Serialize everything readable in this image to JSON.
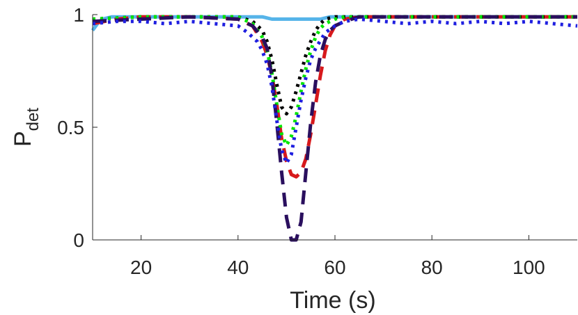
{
  "chart_data": {
    "type": "line",
    "xlabel": "Time (s)",
    "ylabel": {
      "main": "P",
      "subscript": "det"
    },
    "xlim": [
      10,
      110
    ],
    "ylim": [
      0,
      1
    ],
    "xticks": [
      20,
      40,
      60,
      80,
      100
    ],
    "yticks": [
      0,
      0.5,
      1
    ],
    "xtick_labels": [
      "20",
      "40",
      "60",
      "80",
      "100"
    ],
    "ytick_labels": [
      "0",
      "0.5",
      "1"
    ],
    "grid": false,
    "legend": "none",
    "series": [
      {
        "color": "#56b4e9",
        "style": "solid",
        "x": [
          10,
          11,
          12,
          14,
          16,
          20,
          30,
          40,
          43,
          45,
          47,
          50,
          53,
          55,
          57,
          59,
          61,
          70,
          80,
          90,
          100,
          110
        ],
        "y": [
          0.93,
          0.96,
          0.98,
          0.99,
          0.99,
          0.99,
          0.99,
          0.99,
          0.99,
          0.99,
          0.98,
          0.98,
          0.98,
          0.98,
          0.98,
          0.99,
          0.99,
          0.99,
          0.99,
          0.99,
          0.99,
          0.99
        ]
      },
      {
        "color": "#d7191c",
        "style": "dashed",
        "x": [
          10,
          15,
          20,
          30,
          40,
          43,
          45,
          46,
          47,
          48,
          49,
          50,
          51,
          52,
          53,
          54,
          55,
          56,
          57,
          58,
          59,
          60,
          62,
          65,
          70,
          80,
          90,
          100,
          110
        ],
        "y": [
          0.96,
          0.98,
          0.99,
          0.99,
          0.98,
          0.95,
          0.88,
          0.82,
          0.73,
          0.6,
          0.45,
          0.35,
          0.29,
          0.28,
          0.3,
          0.36,
          0.47,
          0.6,
          0.73,
          0.84,
          0.91,
          0.95,
          0.98,
          0.99,
          0.99,
          0.99,
          0.99,
          0.99,
          0.99
        ]
      },
      {
        "color": "#000000",
        "style": "dotted",
        "x": [
          10,
          20,
          30,
          40,
          43,
          45,
          46,
          47,
          48,
          49,
          50,
          51,
          52,
          53,
          54,
          55,
          56,
          57,
          58,
          60,
          62,
          70,
          80,
          90,
          100,
          110
        ],
        "y": [
          0.98,
          0.99,
          0.99,
          0.99,
          0.97,
          0.93,
          0.88,
          0.8,
          0.69,
          0.59,
          0.56,
          0.59,
          0.66,
          0.74,
          0.82,
          0.88,
          0.93,
          0.96,
          0.98,
          0.99,
          0.99,
          0.99,
          0.99,
          0.99,
          0.99,
          0.99
        ]
      },
      {
        "color": "#00e600",
        "style": "dotted",
        "x": [
          10,
          20,
          30,
          40,
          43,
          45,
          46,
          47,
          48,
          49,
          50,
          51,
          52,
          53,
          54,
          55,
          56,
          57,
          58,
          60,
          62,
          70,
          80,
          90,
          100,
          110
        ],
        "y": [
          0.98,
          0.99,
          0.99,
          0.99,
          0.96,
          0.9,
          0.84,
          0.74,
          0.6,
          0.47,
          0.42,
          0.46,
          0.55,
          0.66,
          0.76,
          0.84,
          0.9,
          0.94,
          0.96,
          0.98,
          0.99,
          0.99,
          0.99,
          0.99,
          0.99,
          0.99
        ]
      },
      {
        "color": "#2a0f5e",
        "style": "dashed",
        "x": [
          10,
          20,
          30,
          40,
          43,
          45,
          46,
          47,
          48,
          49,
          50,
          51,
          52,
          53,
          54,
          55,
          56,
          57,
          58,
          59,
          60,
          62,
          65,
          70,
          80,
          90,
          100,
          110
        ],
        "y": [
          0.97,
          0.98,
          0.99,
          0.98,
          0.95,
          0.9,
          0.85,
          0.72,
          0.52,
          0.3,
          0.1,
          0.0,
          0.0,
          0.08,
          0.3,
          0.52,
          0.7,
          0.82,
          0.89,
          0.93,
          0.95,
          0.97,
          0.99,
          0.99,
          0.99,
          0.99,
          0.99,
          0.99
        ]
      },
      {
        "color": "#1f1fe0",
        "style": "dotted",
        "x": [
          10,
          15,
          20,
          25,
          30,
          35,
          40,
          42,
          44,
          45,
          46,
          47,
          48,
          49,
          50,
          51,
          52,
          53,
          54,
          55,
          56,
          58,
          60,
          62,
          65,
          70,
          75,
          80,
          85,
          90,
          95,
          100,
          105,
          110
        ],
        "y": [
          0.96,
          0.97,
          0.97,
          0.96,
          0.97,
          0.96,
          0.95,
          0.92,
          0.88,
          0.84,
          0.78,
          0.68,
          0.53,
          0.4,
          0.34,
          0.38,
          0.5,
          0.62,
          0.72,
          0.8,
          0.85,
          0.92,
          0.95,
          0.97,
          0.98,
          0.97,
          0.96,
          0.97,
          0.96,
          0.97,
          0.96,
          0.97,
          0.96,
          0.95
        ]
      }
    ]
  }
}
